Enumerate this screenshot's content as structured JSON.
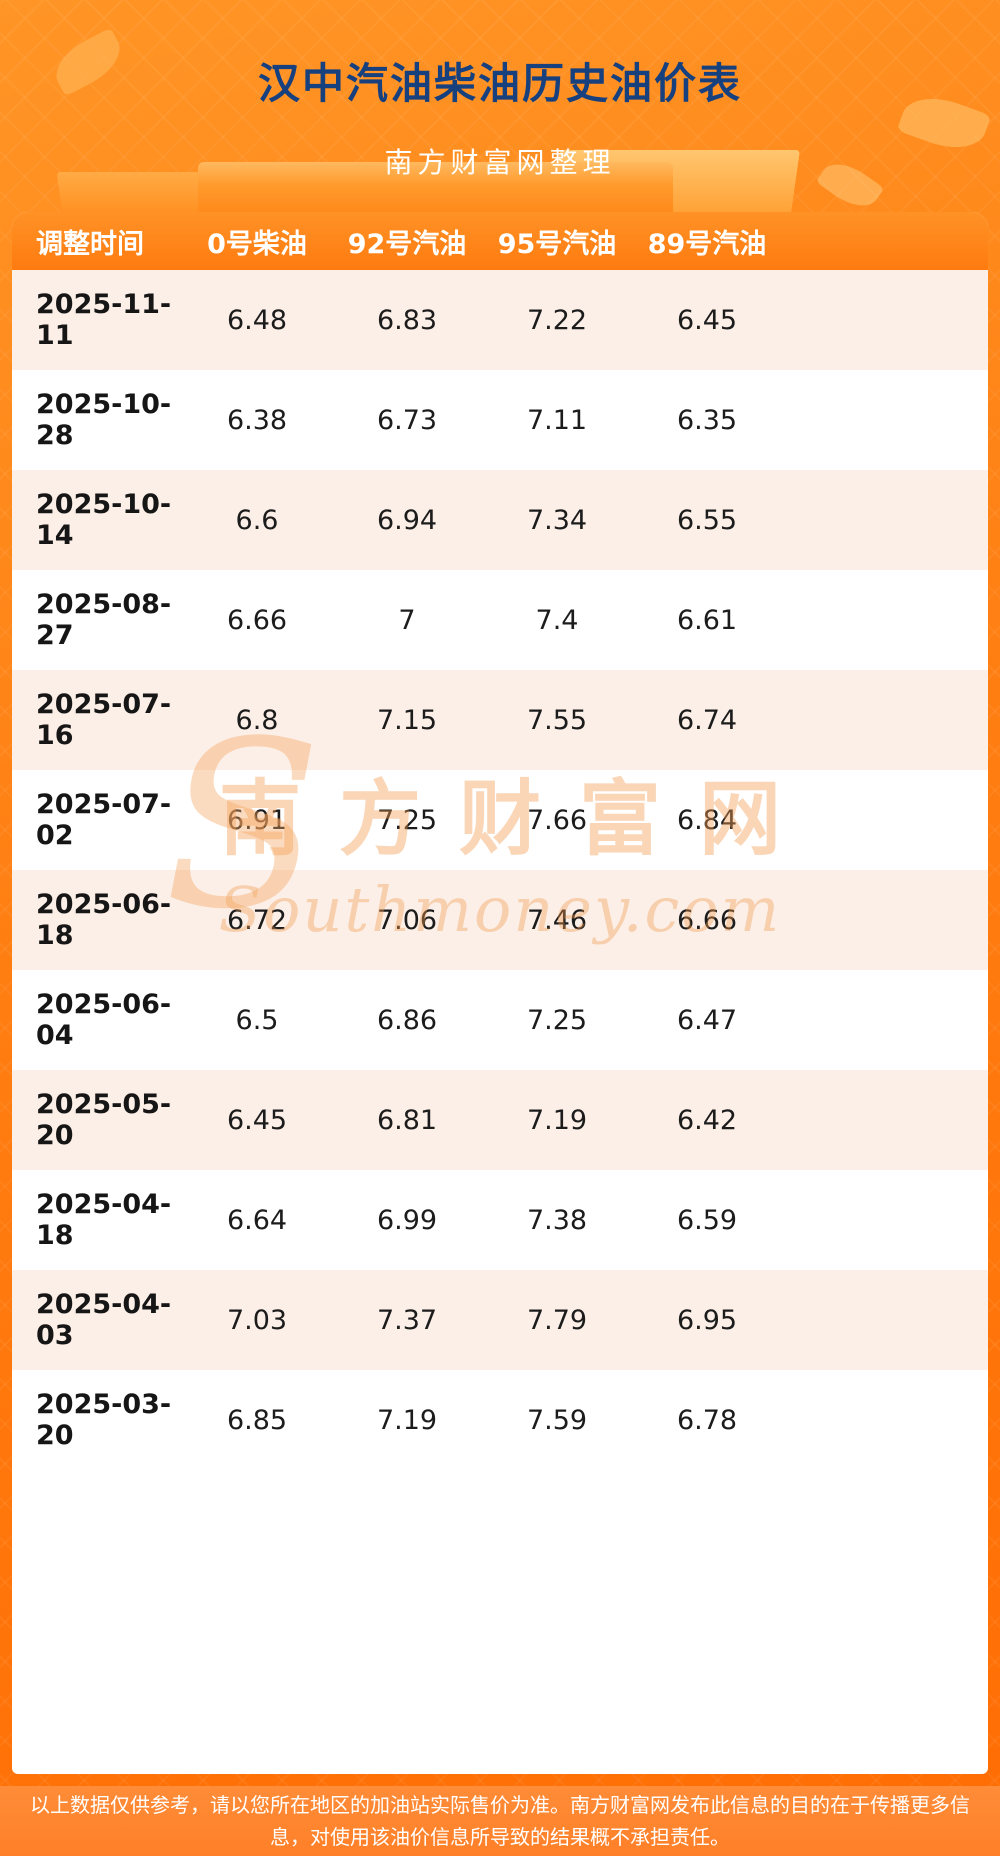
{
  "page": {
    "title": "汉中汽油柴油历史油价表",
    "subtitle": "南方财富网整理",
    "footer_note": "以上数据仅供参考，请以您所在地区的加油站实际售价为准。南方财富网发布此信息的目的在于传播更多信息，对使用该油价信息所导致的结果概不承担责任。"
  },
  "watermark": {
    "initial": "S",
    "cn": "南方财富网",
    "en": "Southmoney.com"
  },
  "colors": {
    "accent_orange": "#ff7b10",
    "title_blue": "#17407e",
    "row_alt_pink": "#fcefe7",
    "header_text": "#ffffff"
  },
  "table": {
    "columns": [
      "调整时间",
      "0号柴油",
      "92号汽油",
      "95号汽油",
      "89号汽油"
    ],
    "rows": [
      {
        "date": "2025-11-11",
        "values": [
          "6.48",
          "6.83",
          "7.22",
          "6.45"
        ]
      },
      {
        "date": "2025-10-28",
        "values": [
          "6.38",
          "6.73",
          "7.11",
          "6.35"
        ]
      },
      {
        "date": "2025-10-14",
        "values": [
          "6.6",
          "6.94",
          "7.34",
          "6.55"
        ]
      },
      {
        "date": "2025-08-27",
        "values": [
          "6.66",
          "7",
          "7.4",
          "6.61"
        ]
      },
      {
        "date": "2025-07-16",
        "values": [
          "6.8",
          "7.15",
          "7.55",
          "6.74"
        ]
      },
      {
        "date": "2025-07-02",
        "values": [
          "6.91",
          "7.25",
          "7.66",
          "6.84"
        ]
      },
      {
        "date": "2025-06-18",
        "values": [
          "6.72",
          "7.06",
          "7.46",
          "6.66"
        ]
      },
      {
        "date": "2025-06-04",
        "values": [
          "6.5",
          "6.86",
          "7.25",
          "6.47"
        ]
      },
      {
        "date": "2025-05-20",
        "values": [
          "6.45",
          "6.81",
          "7.19",
          "6.42"
        ]
      },
      {
        "date": "2025-04-18",
        "values": [
          "6.64",
          "6.99",
          "7.38",
          "6.59"
        ]
      },
      {
        "date": "2025-04-03",
        "values": [
          "7.03",
          "7.37",
          "7.79",
          "6.95"
        ]
      },
      {
        "date": "2025-03-20",
        "values": [
          "6.85",
          "7.19",
          "7.59",
          "6.78"
        ]
      }
    ]
  }
}
